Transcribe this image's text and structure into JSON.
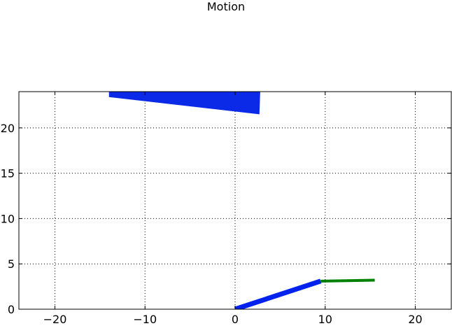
{
  "chart_data": {
    "type": "line",
    "title": "Motion",
    "xlabel": "",
    "ylabel": "",
    "xlim": [
      -24,
      24
    ],
    "ylim": [
      0,
      24
    ],
    "grid": true,
    "xticks": [
      -20,
      -10,
      0,
      10,
      20
    ],
    "xtick_labels": [
      "−20",
      "−10",
      "0",
      "10",
      "20"
    ],
    "yticks": [
      0,
      5,
      10,
      15,
      20
    ],
    "ytick_labels": [
      "0",
      "5",
      "10",
      "15",
      "20"
    ],
    "series": [
      {
        "kind": "line",
        "color": "#0022ee",
        "points": [
          [
            0,
            0
          ],
          [
            9.5,
            3.1
          ]
        ]
      },
      {
        "kind": "line",
        "color": "#008000",
        "points": [
          [
            9.5,
            3.1
          ],
          [
            15.5,
            3.2
          ]
        ]
      },
      {
        "kind": "polygon",
        "color": "#0a2ae8",
        "points": [
          [
            -14,
            23.4
          ],
          [
            -14,
            24.4
          ],
          [
            2.8,
            24.4
          ],
          [
            2.7,
            21.5
          ]
        ]
      }
    ]
  }
}
